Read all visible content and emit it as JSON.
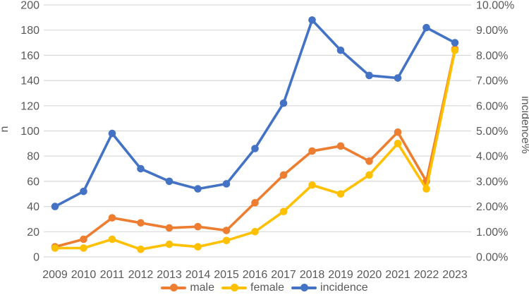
{
  "chart_data": {
    "type": "line",
    "title": "",
    "x": [
      "2009",
      "2010",
      "2011",
      "2012",
      "2013",
      "2014",
      "2015",
      "2016",
      "2017",
      "2018",
      "2019",
      "2020",
      "2021",
      "2022",
      "2023"
    ],
    "series": [
      {
        "name": "male",
        "color": "#ED7D31",
        "axis": "left",
        "values": [
          8,
          14,
          31,
          27,
          23,
          24,
          21,
          43,
          65,
          84,
          88,
          76,
          99,
          60,
          165
        ]
      },
      {
        "name": "female",
        "color": "#FFC000",
        "axis": "left",
        "values": [
          7,
          7,
          14,
          6,
          10,
          8,
          13,
          20,
          36,
          57,
          50,
          65,
          90,
          54,
          164
        ]
      },
      {
        "name": "incidence",
        "color": "#4472C4",
        "axis": "right",
        "values": [
          2.0,
          2.6,
          4.9,
          3.5,
          3.0,
          2.7,
          2.9,
          4.3,
          6.1,
          9.4,
          8.2,
          7.2,
          7.1,
          9.1,
          8.5
        ]
      }
    ],
    "left_axis": {
      "title": "n",
      "min": 0,
      "max": 200,
      "step": 20,
      "tick_labels": [
        "200",
        "180",
        "160",
        "140",
        "120",
        "100",
        "80",
        "60",
        "40",
        "20",
        "0"
      ]
    },
    "right_axis": {
      "title": "incidence%",
      "min": 0,
      "max": 10,
      "step": 1,
      "tick_labels": [
        "10.00%",
        "9.00%",
        "8.00%",
        "7.00%",
        "6.00%",
        "5.00%",
        "4.00%",
        "3.00%",
        "2.00%",
        "1.00%",
        "0.00%"
      ]
    },
    "legend": {
      "position": "bottom",
      "items": [
        "male",
        "female",
        "incidence"
      ]
    },
    "grid": true,
    "gridline_color": "#D9D9D9",
    "label_color": "#595959",
    "background": "#FFFFFF"
  }
}
